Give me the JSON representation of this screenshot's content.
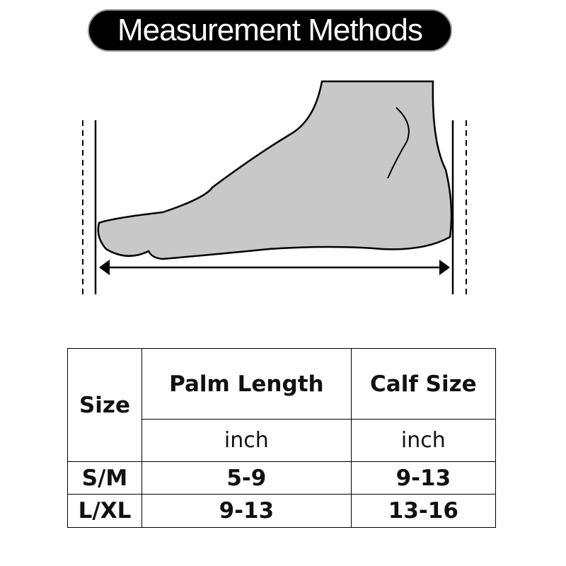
{
  "header": {
    "title": "Measurement Methods"
  },
  "table": {
    "headers": [
      "Size",
      "Palm Length",
      "Calf Size"
    ],
    "units": [
      "inch",
      "inch"
    ],
    "rows": [
      [
        "S/M",
        "5-9",
        "9-13"
      ],
      [
        "L/XL",
        "9-13",
        "13-16"
      ]
    ]
  }
}
